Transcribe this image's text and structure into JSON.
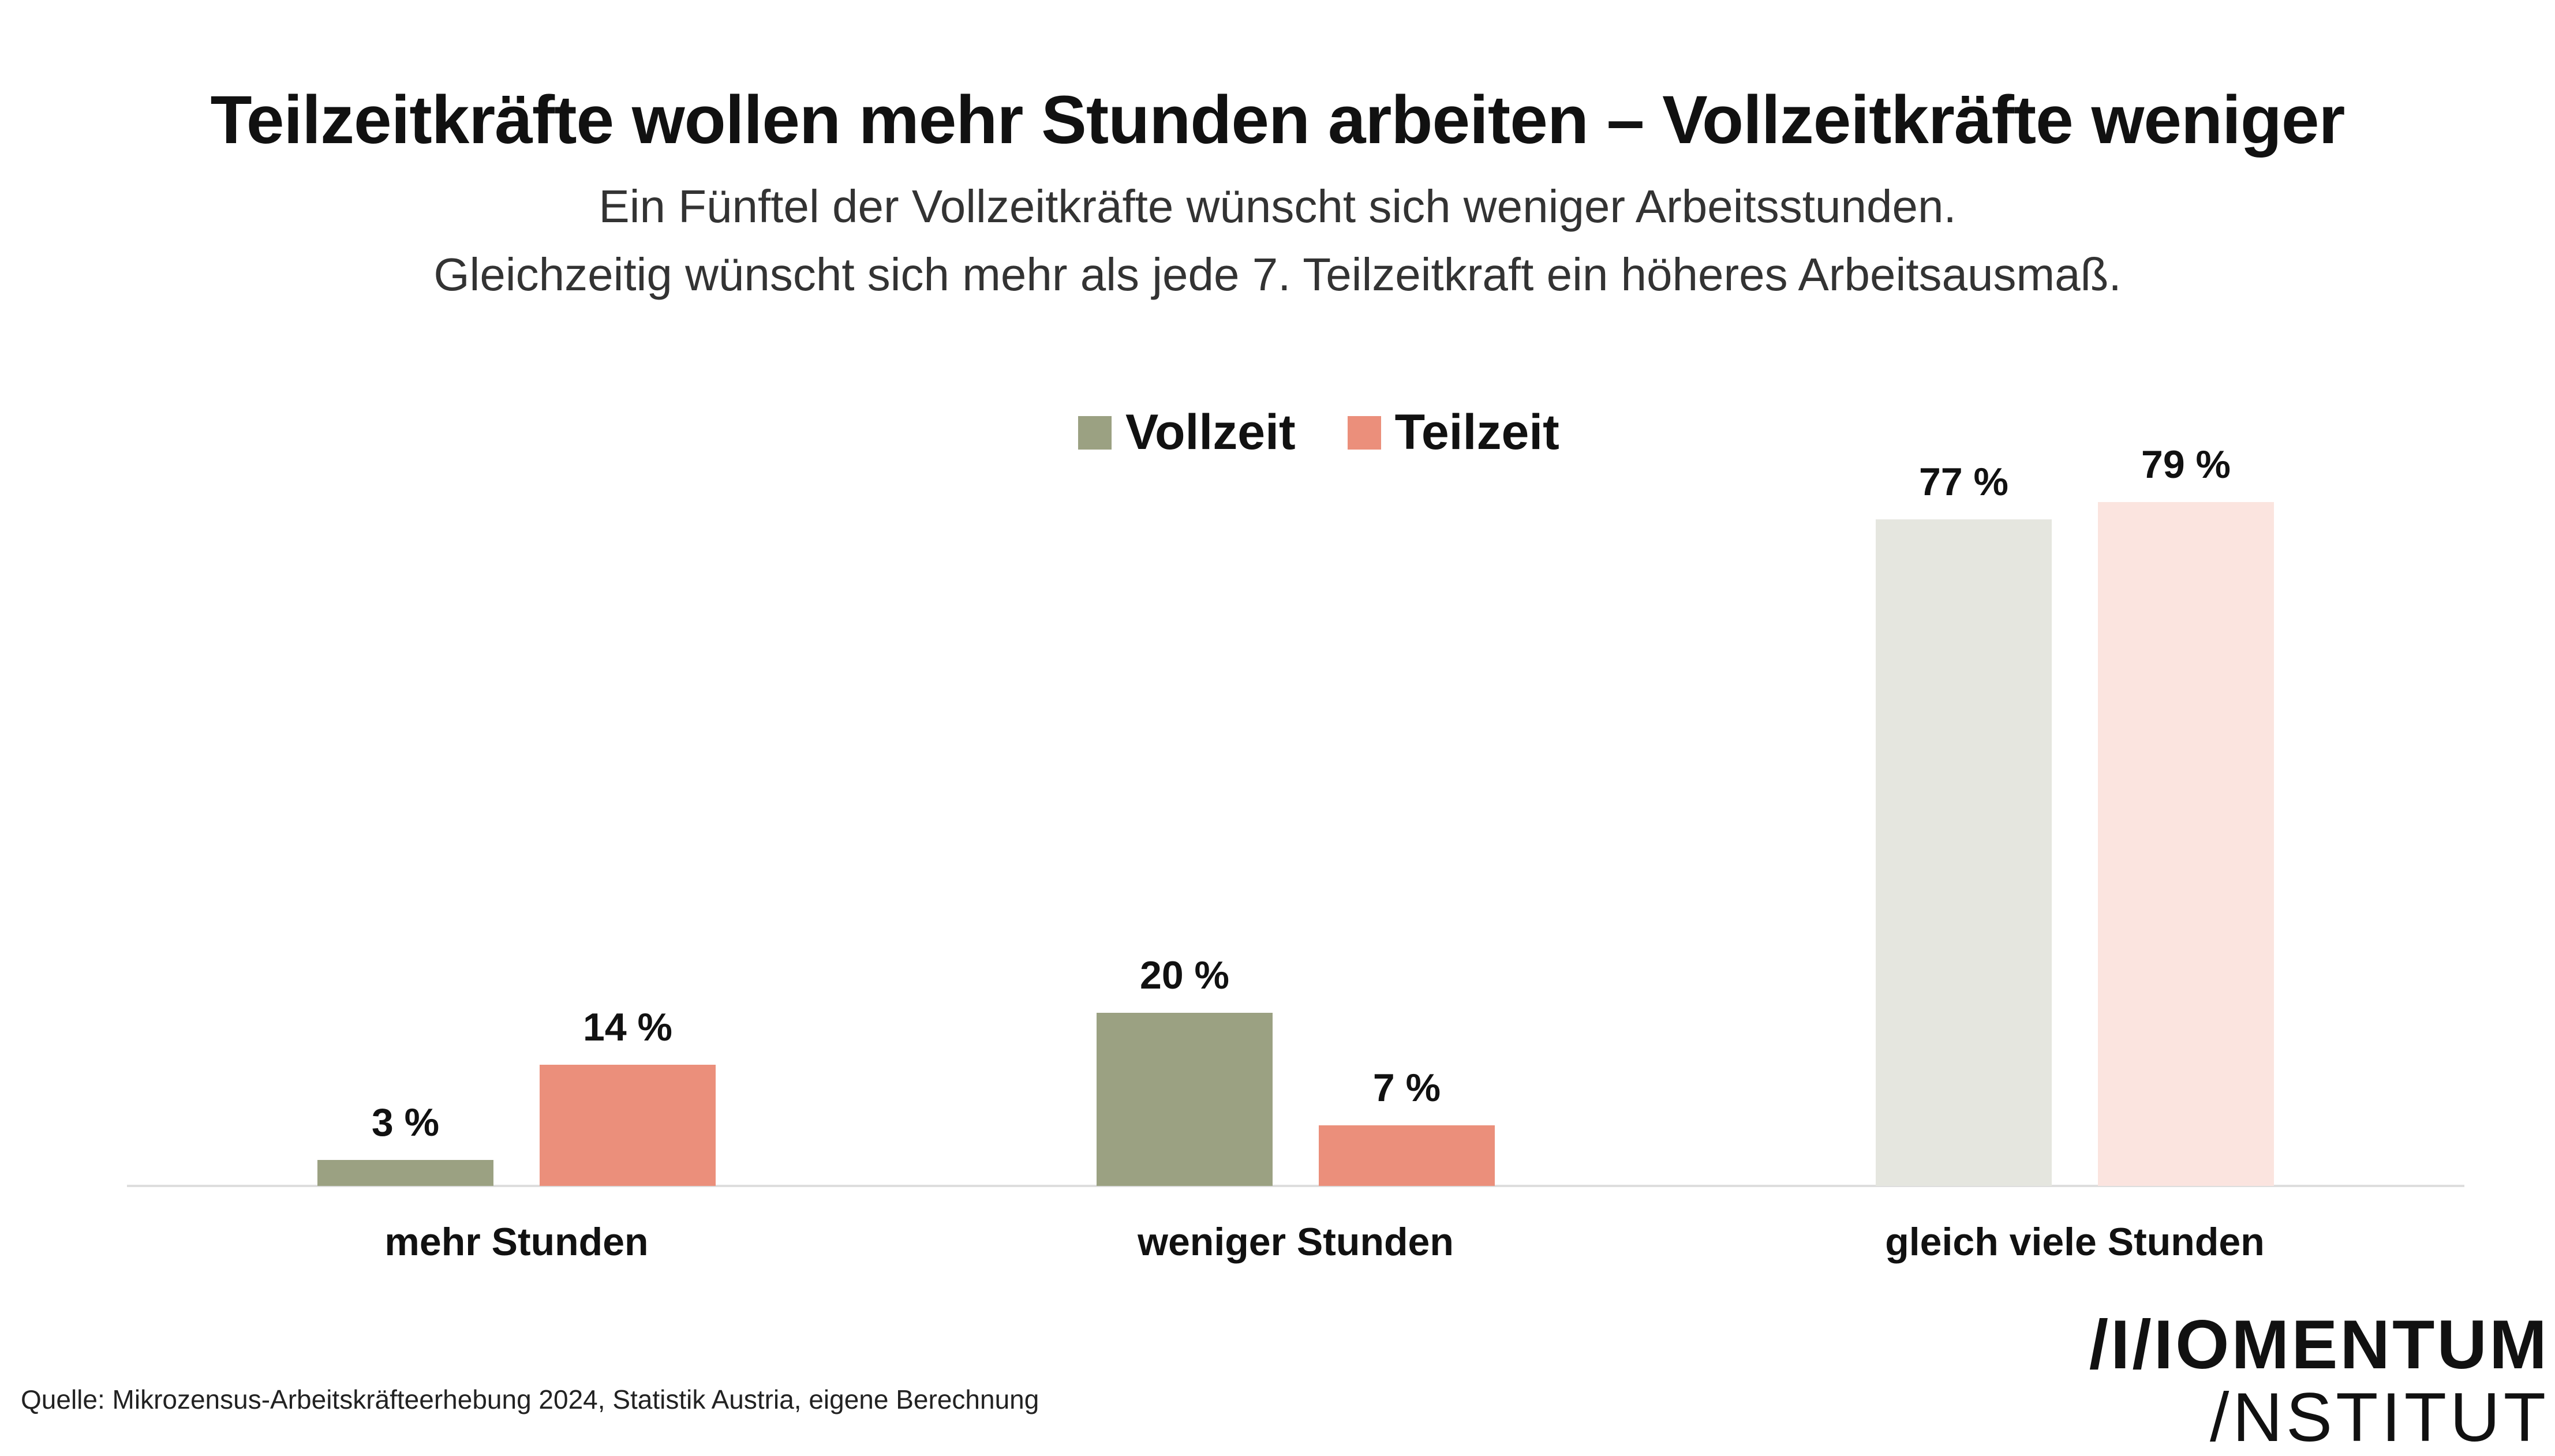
{
  "title": "Teilzeitkräfte wollen mehr Stunden arbeiten – Vollzeitkräfte weniger",
  "subtitle_line1": "Ein Fünftel der Vollzeitkräfte wünscht sich weniger Arbeitsstunden.",
  "subtitle_line2": "Gleichzeitig wünscht sich mehr als jede 7. Teilzeitkraft ein höheres Arbeitsausmaß.",
  "source": "Quelle: Mikrozensus-Arbeitskräfteerhebung 2024, Statistik Austria, eigene Berechnung",
  "logo": {
    "line1": "/I/IOMENTUM",
    "line2": "/NSTITUT"
  },
  "colors": {
    "vollzeit": "#9ba182",
    "teilzeit": "#eb8f7b",
    "vollzeit_light": "#e5e6df",
    "teilzeit_light": "#fbe4df",
    "baseline": "#dddddd"
  },
  "chart_data": {
    "type": "bar",
    "categories": [
      "mehr Stunden",
      "weniger Stunden",
      "gleich viele Stunden"
    ],
    "series": [
      {
        "name": "Vollzeit",
        "values": [
          3,
          20,
          77
        ],
        "labels": [
          "3 %",
          "20 %",
          "77 %"
        ]
      },
      {
        "name": "Teilzeit",
        "values": [
          14,
          7,
          79
        ],
        "labels": [
          "14 %",
          "7 %",
          "79 %"
        ]
      }
    ],
    "highlighted_categories": [
      "mehr Stunden",
      "weniger Stunden"
    ],
    "ylim": [
      0,
      80
    ],
    "grid": false,
    "legend": "top-center",
    "xlabel": "",
    "ylabel": ""
  }
}
